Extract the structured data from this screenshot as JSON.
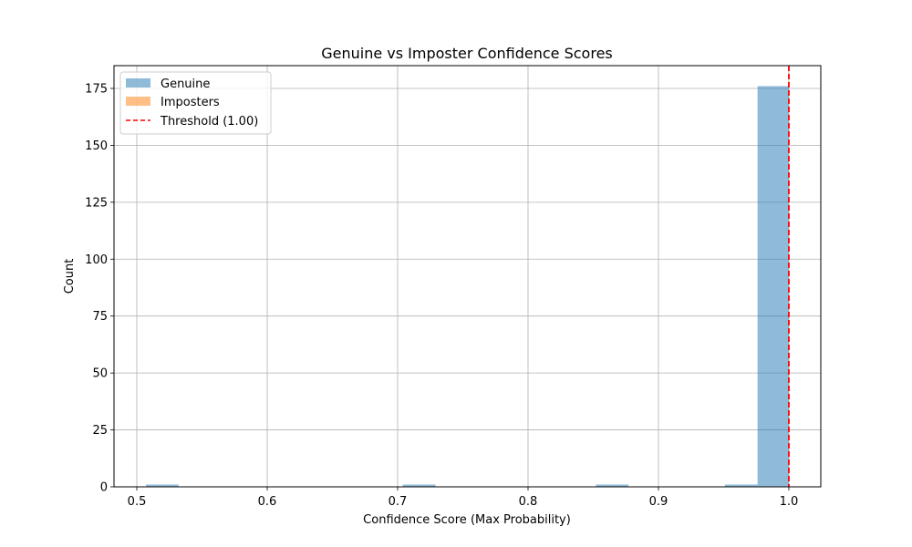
{
  "chart_data": {
    "type": "bar",
    "title": "Genuine vs Imposter Confidence Scores",
    "xlabel": "Confidence Score (Max Probability)",
    "ylabel": "Count",
    "xlim": [
      0.4825,
      1.0245
    ],
    "ylim": [
      0,
      185
    ],
    "xticks": [
      0.5,
      0.6,
      0.7,
      0.8,
      0.9,
      1.0
    ],
    "xtick_labels": [
      "0.5",
      "0.6",
      "0.7",
      "0.8",
      "0.9",
      "1.0"
    ],
    "yticks": [
      0,
      25,
      50,
      75,
      100,
      125,
      150,
      175
    ],
    "ytick_labels": [
      "0",
      "25",
      "50",
      "75",
      "100",
      "125",
      "150",
      "175"
    ],
    "grid": true,
    "legend_position": "top-left",
    "series": [
      {
        "name": "Genuine",
        "color": "#1f77b4",
        "alpha": 0.5,
        "bins": [
          {
            "x0": 0.507,
            "x1": 0.532,
            "count": 1
          },
          {
            "x0": 0.704,
            "x1": 0.729,
            "count": 1
          },
          {
            "x0": 0.852,
            "x1": 0.877,
            "count": 1
          },
          {
            "x0": 0.951,
            "x1": 0.976,
            "count": 1
          },
          {
            "x0": 0.976,
            "x1": 1.0,
            "count": 176
          }
        ]
      },
      {
        "name": "Imposters",
        "color": "#ff7f0e",
        "alpha": 0.5,
        "bins": []
      }
    ],
    "threshold": {
      "value": 1.0,
      "label": "Threshold (1.00)",
      "color": "#ff0000"
    }
  }
}
